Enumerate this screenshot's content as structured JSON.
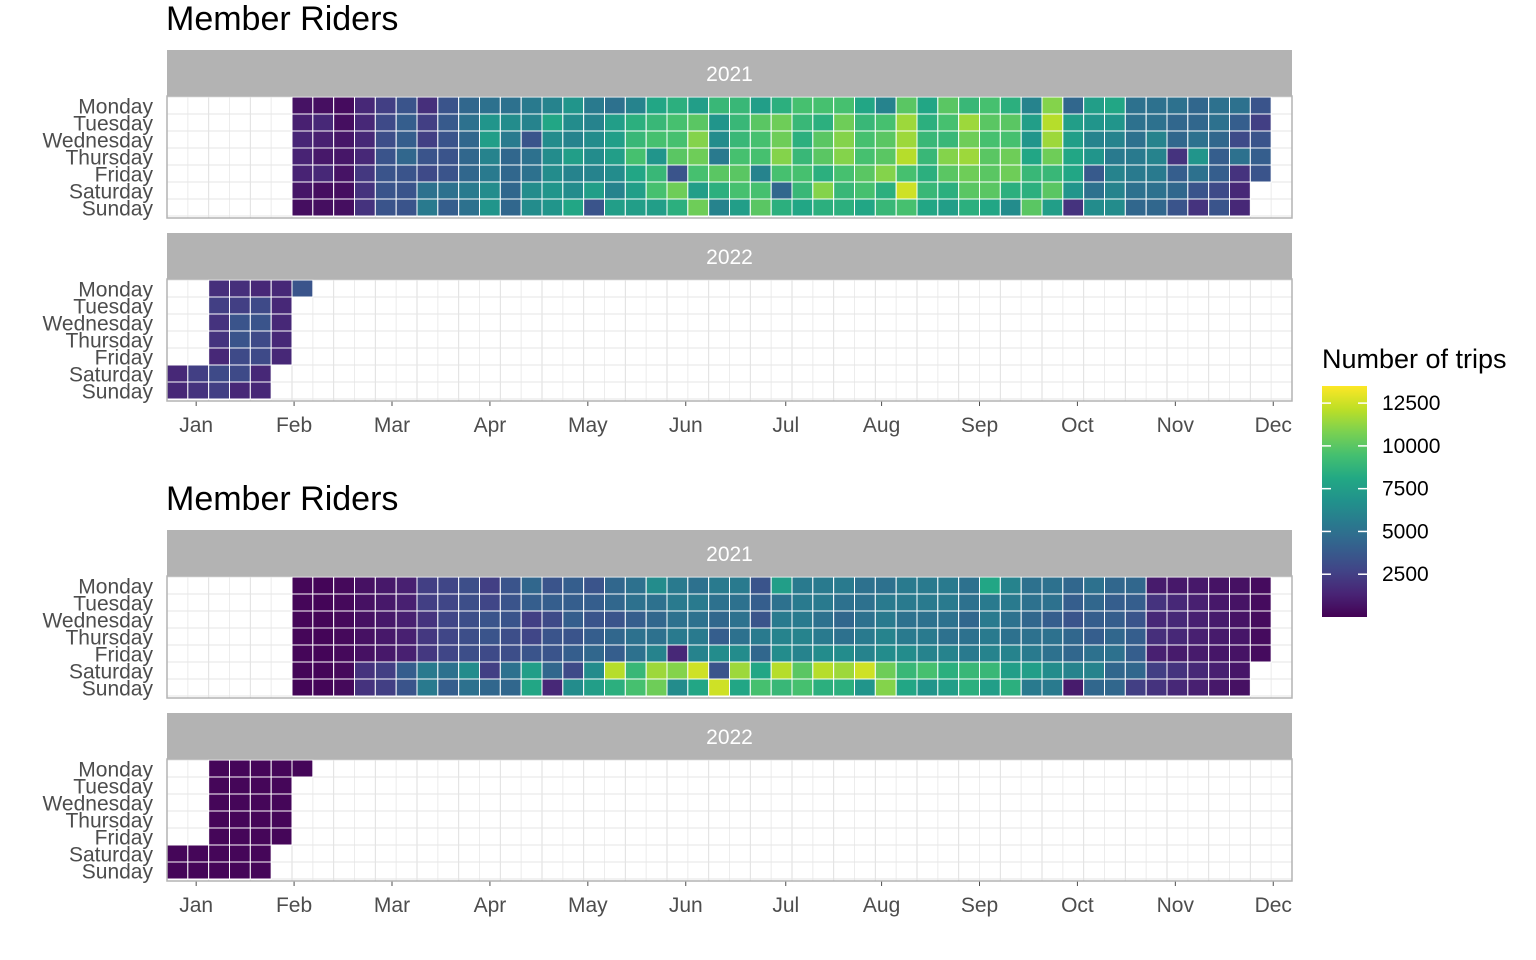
{
  "chart_data": [
    {
      "type": "heatmap",
      "title": "Member Riders",
      "facets": [
        "2021",
        "2022"
      ],
      "y_categories": [
        "Monday",
        "Tuesday",
        "Wednesday",
        "Thursday",
        "Friday",
        "Saturday",
        "Sunday"
      ],
      "x_tick_labels": [
        "Jan",
        "Feb",
        "Mar",
        "Apr",
        "May",
        "Jun",
        "Jul",
        "Aug",
        "Sep",
        "Oct",
        "Nov",
        "Dec"
      ],
      "cell_unit": "week-of-year by weekday",
      "weeks_2021": {
        "first_week": 6,
        "Monday": [
          650,
          550,
          400,
          1500,
          2500,
          3500,
          1800,
          3500,
          4500,
          5000,
          5000,
          5500,
          6000,
          7000,
          5500,
          5000,
          6000,
          8000,
          8500,
          7500,
          9000,
          9000,
          7500,
          8500,
          9500,
          9500,
          9500,
          8000,
          6000,
          10000,
          8000,
          10000,
          9000,
          9500,
          8500,
          6000,
          11000,
          4500,
          7500,
          8000,
          5000,
          5000,
          5000,
          4500,
          5000,
          5000,
          3500
        ],
        "Tuesday": [
          1200,
          1500,
          500,
          1500,
          3000,
          4000,
          2500,
          3800,
          5000,
          7000,
          6500,
          6000,
          8000,
          6500,
          6000,
          7500,
          8500,
          9000,
          9500,
          10000,
          7000,
          9000,
          10000,
          10500,
          9000,
          8500,
          10500,
          9000,
          9500,
          11500,
          8500,
          9500,
          11500,
          10000,
          10000,
          7500,
          12000,
          7500,
          7000,
          7000,
          5000,
          5000,
          4500,
          4500,
          5000,
          4000,
          2500
        ],
        "Wednesday": [
          1400,
          1200,
          800,
          1500,
          3200,
          4000,
          2500,
          3500,
          4500,
          7500,
          5500,
          3500,
          6500,
          6000,
          6500,
          7500,
          9000,
          9500,
          9500,
          11000,
          6500,
          9000,
          9500,
          10500,
          8500,
          10000,
          11000,
          9500,
          10000,
          11500,
          9000,
          9000,
          10500,
          9500,
          9500,
          7000,
          11500,
          7500,
          6000,
          6000,
          5000,
          6000,
          4500,
          5000,
          4500,
          3000,
          3500
        ],
        "Thursday": [
          1300,
          900,
          800,
          1500,
          3500,
          4500,
          3500,
          3500,
          4500,
          6000,
          4500,
          5000,
          6500,
          7500,
          6500,
          7500,
          9500,
          7000,
          10000,
          10500,
          5500,
          9500,
          9500,
          11000,
          9000,
          10000,
          11000,
          9500,
          10000,
          12000,
          9000,
          11000,
          11500,
          10000,
          10500,
          8000,
          10500,
          8000,
          7000,
          5500,
          5500,
          6000,
          2000,
          7000,
          4000,
          5000,
          4000
        ],
        "Friday": [
          1300,
          1500,
          700,
          2200,
          3500,
          3500,
          3000,
          3500,
          4500,
          5500,
          4500,
          5000,
          6500,
          6000,
          6000,
          6500,
          8000,
          9000,
          3500,
          9500,
          10000,
          10000,
          6000,
          9500,
          9500,
          8500,
          9500,
          10000,
          11000,
          9500,
          8500,
          10000,
          10500,
          10000,
          10500,
          9000,
          9000,
          8000,
          3800,
          6000,
          5500,
          5500,
          4000,
          5000,
          4000,
          2000,
          3500
        ],
        "Saturday": [
          800,
          500,
          500,
          2000,
          3500,
          3500,
          5000,
          5000,
          5500,
          6500,
          4500,
          6500,
          7000,
          6500,
          7500,
          6000,
          7500,
          9500,
          10500,
          7500,
          8500,
          9500,
          9500,
          4500,
          9000,
          11000,
          9000,
          9500,
          8500,
          12500,
          9000,
          8500,
          10000,
          10000,
          8500,
          8500,
          10000,
          7000,
          5000,
          6000,
          5000,
          5000,
          4500,
          3500,
          3000,
          1500,
          0
        ],
        "Sunday": [
          500,
          500,
          500,
          2000,
          3500,
          3500,
          5500,
          4000,
          5000,
          7000,
          4500,
          6500,
          7000,
          8000,
          3500,
          7500,
          7500,
          7500,
          8500,
          10500,
          6000,
          7500,
          10000,
          8500,
          8000,
          8500,
          8500,
          8000,
          9000,
          9500,
          8000,
          7500,
          8500,
          8000,
          6500,
          10000,
          7500,
          2000,
          6500,
          6500,
          4500,
          4500,
          3500,
          2000,
          3500,
          1500,
          0
        ]
      },
      "weeks_2022": {
        "first_week": 1,
        "Monday": [
          0,
          1800,
          1800,
          1500,
          1500,
          3500
        ],
        "Tuesday": [
          0,
          2500,
          2500,
          3000,
          1500
        ],
        "Wednesday": [
          0,
          2000,
          3500,
          3500,
          1500
        ],
        "Thursday": [
          0,
          2000,
          3500,
          3000,
          1500
        ],
        "Friday": [
          0,
          1500,
          3000,
          3000,
          1500
        ],
        "Saturday": [
          1500,
          2500,
          3000,
          3000,
          1500
        ],
        "Sunday": [
          1500,
          2000,
          2500,
          1500,
          1500
        ]
      }
    },
    {
      "type": "heatmap",
      "title": "Member Riders",
      "facets": [
        "2021",
        "2022"
      ],
      "y_categories": [
        "Monday",
        "Tuesday",
        "Wednesday",
        "Thursday",
        "Friday",
        "Saturday",
        "Sunday"
      ],
      "x_tick_labels": [
        "Jan",
        "Feb",
        "Mar",
        "Apr",
        "May",
        "Jun",
        "Jul",
        "Aug",
        "Sep",
        "Oct",
        "Nov",
        "Dec"
      ],
      "cell_unit": "week-of-year by weekday",
      "weeks_2021": {
        "first_week": 6,
        "Monday": [
          200,
          150,
          300,
          600,
          900,
          1200,
          2500,
          2800,
          3200,
          2500,
          3500,
          4500,
          3500,
          4000,
          3500,
          4500,
          5000,
          6500,
          5500,
          5000,
          5500,
          5500,
          3500,
          7500,
          5500,
          5500,
          5500,
          5000,
          5000,
          5500,
          5500,
          5500,
          5000,
          8000,
          6000,
          5000,
          5000,
          4500,
          5000,
          4500,
          4500,
          1000,
          900,
          900,
          700,
          600,
          400
        ],
        "Tuesday": [
          200,
          150,
          300,
          600,
          900,
          1200,
          2500,
          2800,
          3200,
          2800,
          3500,
          4000,
          4000,
          4000,
          4000,
          4500,
          5000,
          5000,
          5500,
          5500,
          5000,
          5000,
          4000,
          5000,
          5500,
          5500,
          5000,
          5000,
          5500,
          5500,
          5500,
          5500,
          5000,
          5500,
          5500,
          5000,
          5000,
          4000,
          4500,
          4000,
          4000,
          2000,
          1500,
          1200,
          900,
          700,
          400
        ],
        "Wednesday": [
          200,
          150,
          300,
          600,
          900,
          1200,
          2000,
          2800,
          3200,
          3500,
          3500,
          2500,
          3000,
          4000,
          3500,
          3500,
          4000,
          4500,
          5000,
          5000,
          4500,
          5000,
          3500,
          5500,
          5500,
          5000,
          4500,
          5000,
          5500,
          5000,
          5000,
          5000,
          4500,
          5500,
          5000,
          4500,
          4000,
          3500,
          4000,
          4000,
          3500,
          1500,
          1500,
          1200,
          1000,
          700,
          400
        ],
        "Thursday": [
          200,
          150,
          300,
          600,
          900,
          1200,
          2200,
          2800,
          3200,
          3500,
          3200,
          2800,
          3500,
          3500,
          4000,
          4500,
          5000,
          5000,
          5500,
          5500,
          4000,
          5000,
          5500,
          6000,
          6000,
          5500,
          5000,
          5500,
          6000,
          5500,
          5500,
          5000,
          5000,
          5500,
          5000,
          5000,
          5000,
          4500,
          4000,
          4500,
          4000,
          1800,
          1500,
          1200,
          1000,
          800,
          400
        ],
        "Friday": [
          200,
          150,
          300,
          600,
          900,
          1200,
          2200,
          2800,
          3200,
          3000,
          3200,
          3500,
          3500,
          4000,
          4500,
          4000,
          5000,
          6000,
          1500,
          6000,
          6500,
          6500,
          4500,
          6500,
          6000,
          6500,
          6500,
          6000,
          6500,
          6500,
          6000,
          6000,
          5500,
          6000,
          6000,
          5500,
          5000,
          4500,
          5000,
          5000,
          4000,
          1200,
          1000,
          1000,
          800,
          700,
          400
        ],
        "Saturday": [
          150,
          150,
          300,
          2000,
          2500,
          4000,
          5500,
          5000,
          6500,
          2500,
          5000,
          7500,
          4500,
          3000,
          6500,
          12000,
          9000,
          11500,
          11000,
          12500,
          3500,
          11500,
          8000,
          12000,
          10000,
          12000,
          11500,
          12500,
          10500,
          9000,
          9500,
          8500,
          9000,
          9000,
          7500,
          7500,
          6500,
          6000,
          6000,
          4500,
          4500,
          2500,
          2000,
          1500,
          1200,
          800,
          0
        ],
        "Sunday": [
          150,
          150,
          300,
          2000,
          2500,
          3500,
          5500,
          4000,
          5000,
          4500,
          4500,
          8000,
          1500,
          6500,
          7500,
          8500,
          9500,
          10500,
          6500,
          8000,
          12500,
          8000,
          9500,
          9000,
          9500,
          8500,
          8500,
          7000,
          11000,
          8000,
          7000,
          7500,
          8500,
          7500,
          8500,
          5500,
          5500,
          1000,
          4500,
          4500,
          2500,
          2000,
          1500,
          1200,
          900,
          600,
          0
        ]
      },
      "weeks_2022": {
        "first_week": 1,
        "Monday": [
          0,
          200,
          200,
          200,
          200,
          200
        ],
        "Tuesday": [
          0,
          200,
          200,
          200,
          200
        ],
        "Wednesday": [
          0,
          200,
          200,
          200,
          200
        ],
        "Thursday": [
          0,
          200,
          200,
          200,
          200
        ],
        "Friday": [
          0,
          200,
          200,
          200,
          200
        ],
        "Saturday": [
          200,
          200,
          200,
          200,
          200
        ],
        "Sunday": [
          200,
          200,
          200,
          200,
          200
        ]
      }
    }
  ],
  "legend": {
    "title": "Number of trips",
    "ticks": [
      2500,
      5000,
      7500,
      10000,
      12500
    ],
    "tick_labels": [
      "2500",
      "5000",
      "7500",
      "10000",
      "12500"
    ],
    "range": [
      0,
      13500
    ],
    "palette": "viridis"
  }
}
